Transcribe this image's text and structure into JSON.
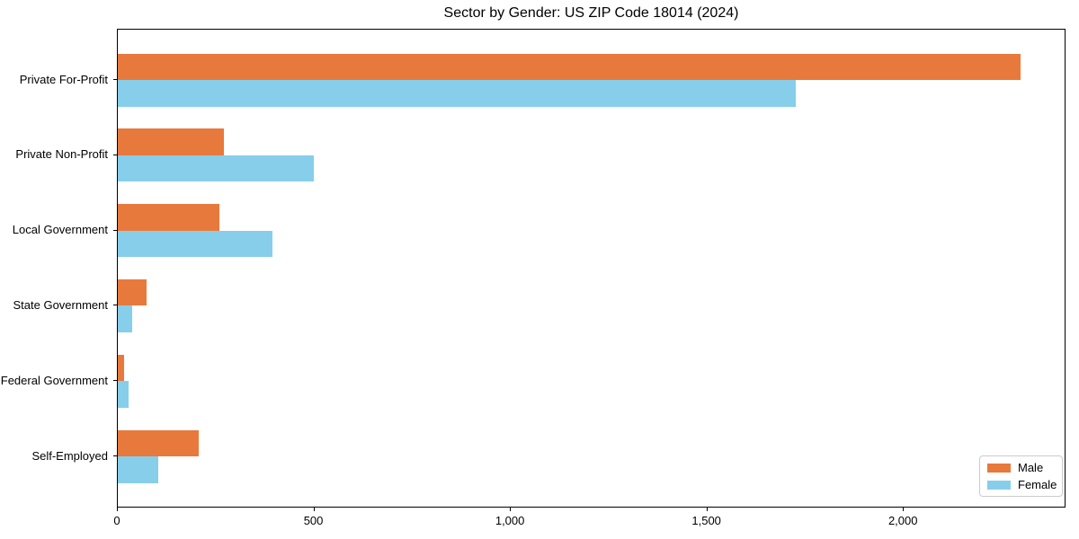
{
  "chart_data": {
    "type": "bar",
    "orientation": "horizontal",
    "title": "Sector by Gender: US ZIP Code 18014 (2024)",
    "xlabel": "",
    "ylabel": "",
    "categories": [
      "Private For-Profit",
      "Private Non-Profit",
      "Local Government",
      "State Government",
      "Federal Government",
      "Self-Employed"
    ],
    "series": [
      {
        "name": "Male",
        "color": "#E8793C",
        "values": [
          2297,
          271,
          259,
          74,
          16,
          205
        ]
      },
      {
        "name": "Female",
        "color": "#87CEEB",
        "values": [
          1726,
          498,
          393,
          37,
          28,
          103
        ]
      }
    ],
    "xlim": [
      0,
      2409
    ],
    "x_ticks": [
      0,
      500,
      1000,
      1500,
      2000
    ],
    "x_tick_labels": [
      "0",
      "500",
      "1,000",
      "1,500",
      "2,000"
    ],
    "grid": false,
    "legend_position": "lower right",
    "spine_color": "#000000",
    "background_color": "#ffffff"
  }
}
